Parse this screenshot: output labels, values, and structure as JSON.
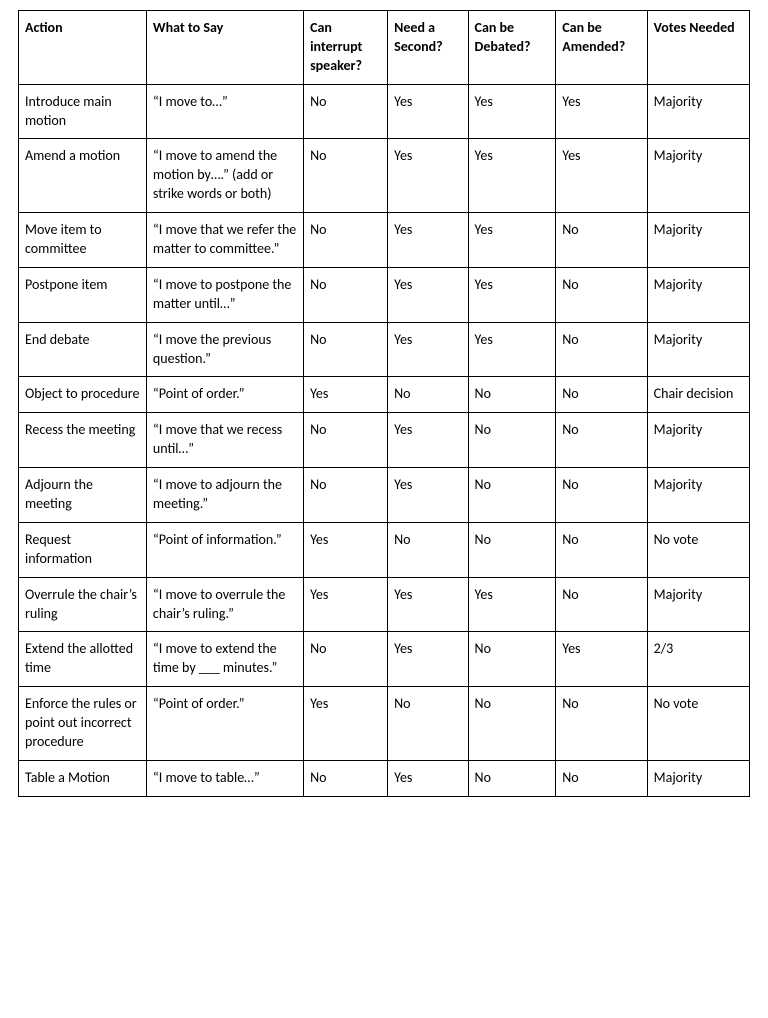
{
  "table": {
    "type": "table",
    "background_color": "#ffffff",
    "border_color": "#000000",
    "text_color": "#000000",
    "header_fontweight": 700,
    "body_fontweight": 400,
    "fontsize": 14,
    "columns": [
      {
        "label": "Action",
        "width_pct": 17.5
      },
      {
        "label": "What to Say",
        "width_pct": 21.5
      },
      {
        "label": "Can interrupt speaker?",
        "width_pct": 11.5
      },
      {
        "label": "Need a Second?",
        "width_pct": 11
      },
      {
        "label": "Can be Debated?",
        "width_pct": 12
      },
      {
        "label": "Can be Amended?",
        "width_pct": 12.5
      },
      {
        "label": "Votes Needed",
        "width_pct": 14
      }
    ],
    "rows": [
      [
        "Introduce main motion",
        "“I move to…”",
        "No",
        "Yes",
        "Yes",
        "Yes",
        "Majority"
      ],
      [
        "Amend a motion",
        "“I move to amend the motion by….” (add or strike words or both)",
        "No",
        "Yes",
        "Yes",
        "Yes",
        "Majority"
      ],
      [
        "Move item to committee",
        "“I move that we refer the matter to committee.”",
        "No",
        "Yes",
        "Yes",
        "No",
        "Majority"
      ],
      [
        "Postpone item",
        "“I move to postpone the matter until…”",
        "No",
        "Yes",
        "Yes",
        "No",
        "Majority"
      ],
      [
        "End debate",
        "“I move the previous question.”",
        "No",
        "Yes",
        "Yes",
        "No",
        "Majority"
      ],
      [
        "Object to procedure",
        "“Point of order.”",
        "Yes",
        "No",
        "No",
        "No",
        "Chair decision"
      ],
      [
        "Recess the meeting",
        "“I move that we recess until…”",
        "No",
        "Yes",
        "No",
        "No",
        "Majority"
      ],
      [
        "Adjourn the meeting",
        "“I move to adjourn the meeting.”",
        "No",
        "Yes",
        "No",
        "No",
        "Majority"
      ],
      [
        "Request information",
        "“Point of information.”",
        "Yes",
        "No",
        "No",
        "No",
        "No vote"
      ],
      [
        "Overrule the chair’s ruling",
        "“I move to overrule the chair’s ruling.”",
        "Yes",
        "Yes",
        "Yes",
        "No",
        "Majority"
      ],
      [
        "Extend the allotted time",
        "“I move to extend the time by ___ minutes.”",
        "No",
        "Yes",
        "No",
        "Yes",
        "2/3"
      ],
      [
        "Enforce the rules or point out incorrect procedure",
        "“Point of order.”",
        "Yes",
        "No",
        "No",
        "No",
        "No vote"
      ],
      [
        "Table a Motion",
        "“I move to table…”",
        "No",
        "Yes",
        "No",
        "No",
        "Majority"
      ]
    ]
  }
}
